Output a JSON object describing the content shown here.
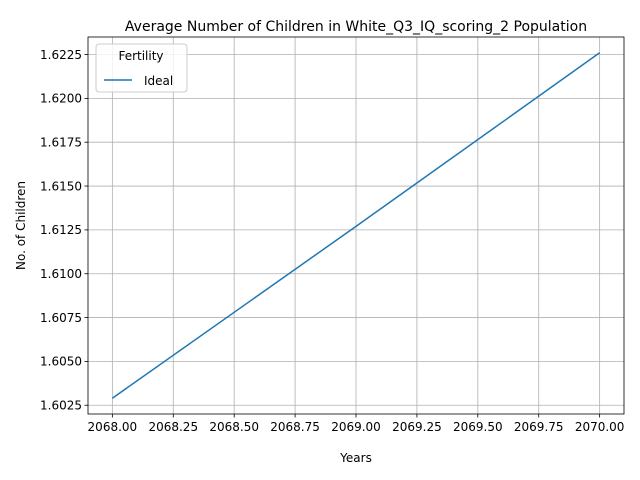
{
  "chart_data": {
    "type": "line",
    "title": "Average Number of Children in White_Q3_IQ_scoring_2 Population",
    "xlabel": "Years",
    "ylabel": "No. of Children",
    "xlim": [
      1967.9,
      2070.1
    ],
    "xlim_real": [
      2067.9,
      2070.1
    ],
    "ylim": [
      1.602,
      1.6235
    ],
    "x_ticks": [
      "2068.00",
      "2068.25",
      "2068.50",
      "2068.75",
      "2069.00",
      "2069.25",
      "2069.50",
      "2069.75",
      "2070.00"
    ],
    "x_tick_values": [
      2068.0,
      2068.25,
      2068.5,
      2068.75,
      2069.0,
      2069.25,
      2069.5,
      2069.75,
      2070.0
    ],
    "y_ticks": [
      "1.6025",
      "1.6050",
      "1.6075",
      "1.6100",
      "1.6125",
      "1.6150",
      "1.6175",
      "1.6200",
      "1.6225"
    ],
    "y_tick_values": [
      1.6025,
      1.605,
      1.6075,
      1.61,
      1.6125,
      1.615,
      1.6175,
      1.62,
      1.6225
    ],
    "grid": true,
    "legend": {
      "title": "Fertility",
      "placement": "top-left"
    },
    "series": [
      {
        "name": "Ideal",
        "color": "#1f77b4",
        "x": [
          2068,
          2069,
          2070
        ],
        "y": [
          1.6029,
          1.6127,
          1.6226
        ]
      }
    ]
  }
}
